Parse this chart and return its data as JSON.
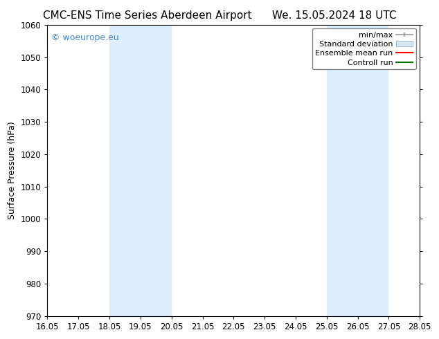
{
  "title_left": "CMC-ENS Time Series Aberdeen Airport",
  "title_right": "We. 15.05.2024 18 UTC",
  "ylabel": "Surface Pressure (hPa)",
  "ylim": [
    970,
    1060
  ],
  "yticks": [
    970,
    980,
    990,
    1000,
    1010,
    1020,
    1030,
    1040,
    1050,
    1060
  ],
  "xlim_start": 16.05,
  "xlim_end": 28.05,
  "xticks": [
    16.05,
    17.05,
    18.05,
    19.05,
    20.05,
    21.05,
    22.05,
    23.05,
    24.05,
    25.05,
    26.05,
    27.05,
    28.05
  ],
  "xlabel_labels": [
    "16.05",
    "17.05",
    "18.05",
    "19.05",
    "20.05",
    "21.05",
    "22.05",
    "23.05",
    "24.05",
    "25.05",
    "26.05",
    "27.05",
    "28.05"
  ],
  "shaded_bands": [
    {
      "xmin": 18.05,
      "xmax": 20.05
    },
    {
      "xmin": 25.05,
      "xmax": 27.05
    }
  ],
  "shaded_color": "#ddeeff",
  "background_color": "#ffffff",
  "watermark_text": "© woeurope.eu",
  "watermark_color": "#4488cc",
  "legend_items": [
    {
      "label": "min/max",
      "color": "#aaaaaa",
      "style": "line_with_cap"
    },
    {
      "label": "Standard deviation",
      "color": "#ccddee",
      "style": "filled_box"
    },
    {
      "label": "Ensemble mean run",
      "color": "#ff0000",
      "style": "line"
    },
    {
      "label": "Controll run",
      "color": "#007700",
      "style": "line"
    }
  ],
  "title_fontsize": 11,
  "tick_fontsize": 8.5,
  "ylabel_fontsize": 9,
  "watermark_fontsize": 9,
  "legend_fontsize": 8
}
